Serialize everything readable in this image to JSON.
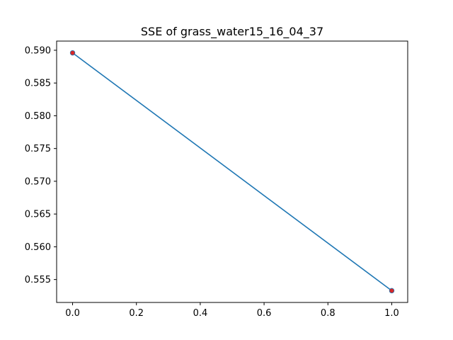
{
  "chart_data": {
    "type": "line",
    "title": "SSE of grass_water15_16_04_37",
    "xlabel": "",
    "ylabel": "",
    "x": [
      0.0,
      1.0
    ],
    "series": [
      {
        "values": [
          0.5896,
          0.5533
        ],
        "line_color": "#1f77b4",
        "marker_color": "#d62728"
      }
    ],
    "xlim": [
      -0.05,
      1.05
    ],
    "ylim": [
      0.5515,
      0.5914
    ],
    "xticks": [
      0.0,
      0.2,
      0.4,
      0.6,
      0.8,
      1.0
    ],
    "xtick_labels": [
      "0.0",
      "0.2",
      "0.4",
      "0.6",
      "0.8",
      "1.0"
    ],
    "yticks": [
      0.555,
      0.56,
      0.565,
      0.57,
      0.575,
      0.58,
      0.585,
      0.59
    ],
    "ytick_labels": [
      "0.555",
      "0.560",
      "0.565",
      "0.570",
      "0.575",
      "0.580",
      "0.585",
      "0.590"
    ],
    "grid": false,
    "legend": "none"
  }
}
